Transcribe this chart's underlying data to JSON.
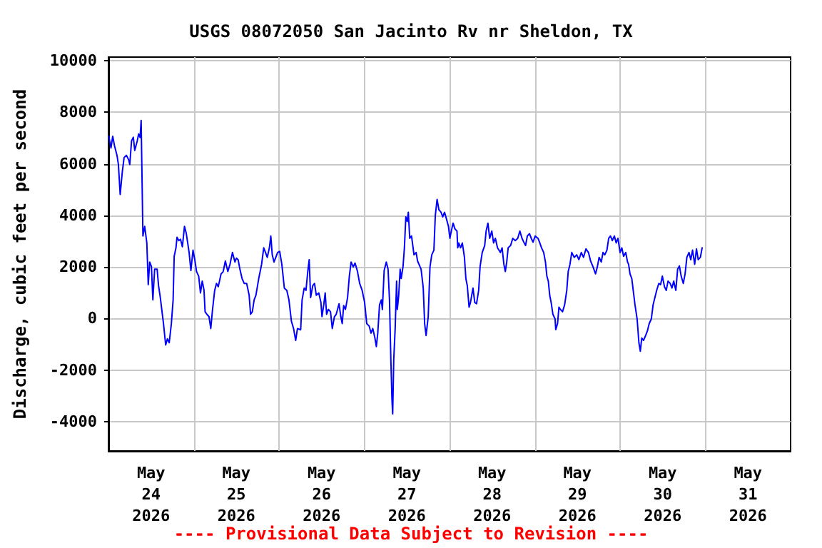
{
  "chart_data": {
    "type": "line",
    "title": "USGS 08072050 San Jacinto Rv nr Sheldon, TX",
    "ylabel": "Discharge, cubic feet per second",
    "annotations": [
      "---- Provisional Data Subject to Revision ----"
    ],
    "xlim": [
      "2026-05-24T00:00",
      "2026-06-01T00:00"
    ],
    "xticks": [
      {
        "value": "2026-05-24T12:00",
        "label": "May\n24\n2026"
      },
      {
        "value": "2026-05-25T00:00",
        "label": null
      },
      {
        "value": "2026-05-25T12:00",
        "label": "May\n25\n2026"
      },
      {
        "value": "2026-05-26T00:00",
        "label": null
      },
      {
        "value": "2026-05-26T12:00",
        "label": "May\n26\n2026"
      },
      {
        "value": "2026-05-27T00:00",
        "label": null
      },
      {
        "value": "2026-05-27T12:00",
        "label": "May\n27\n2026"
      },
      {
        "value": "2026-05-28T00:00",
        "label": null
      },
      {
        "value": "2026-05-28T12:00",
        "label": "May\n28\n2026"
      },
      {
        "value": "2026-05-29T00:00",
        "label": null
      },
      {
        "value": "2026-05-29T12:00",
        "label": "May\n29\n2026"
      },
      {
        "value": "2026-05-30T00:00",
        "label": null
      },
      {
        "value": "2026-05-30T12:00",
        "label": "May\n30\n2026"
      },
      {
        "value": "2026-05-31T00:00",
        "label": null
      },
      {
        "value": "2026-05-31T12:00",
        "label": "May\n31\n2026"
      }
    ],
    "ylim": [
      -5140,
      10140
    ],
    "yticks": [
      -4000,
      -2000,
      0,
      2000,
      4000,
      6000,
      8000,
      10000
    ],
    "grid": true,
    "marker": "none",
    "line_style": "solid",
    "series": [
      {
        "color": "#0000ff",
        "x": [
          "2026-05-24T00:06",
          "2026-05-24T00:42",
          "2026-05-24T01:12",
          "2026-05-24T01:42",
          "2026-05-24T02:24",
          "2026-05-24T02:48",
          "2026-05-24T03:18",
          "2026-05-24T03:54",
          "2026-05-24T04:24",
          "2026-05-24T05:03",
          "2026-05-24T05:42",
          "2026-05-24T06:00",
          "2026-05-24T06:30",
          "2026-05-24T07:00",
          "2026-05-24T07:24",
          "2026-05-24T08:06",
          "2026-05-24T08:30",
          "2026-05-24T08:54",
          "2026-05-24T09:12",
          "2026-05-24T09:24",
          "2026-05-24T09:42",
          "2026-05-24T10:12",
          "2026-05-24T10:48",
          "2026-05-24T11:12",
          "2026-05-24T11:36",
          "2026-05-24T12:06",
          "2026-05-24T12:30",
          "2026-05-24T13:00",
          "2026-05-24T13:42",
          "2026-05-24T14:06",
          "2026-05-24T14:36",
          "2026-05-24T15:00",
          "2026-05-24T15:30",
          "2026-05-24T16:06",
          "2026-05-24T16:36",
          "2026-05-24T17:06",
          "2026-05-24T17:42",
          "2026-05-24T18:12",
          "2026-05-24T18:30",
          "2026-05-24T19:00",
          "2026-05-24T19:18",
          "2026-05-24T19:48",
          "2026-05-24T20:18",
          "2026-05-24T20:48",
          "2026-05-24T21:24",
          "2026-05-24T21:54",
          "2026-05-24T22:18",
          "2026-05-24T22:42",
          "2026-05-24T23:12",
          "2026-05-24T23:48",
          "2026-05-25T00:18",
          "2026-05-25T00:48",
          "2026-05-25T01:24",
          "2026-05-25T01:54",
          "2026-05-25T02:24",
          "2026-05-25T02:54",
          "2026-05-25T03:12",
          "2026-05-25T03:42",
          "2026-05-25T04:18",
          "2026-05-25T04:48",
          "2026-05-25T05:18",
          "2026-05-25T05:54",
          "2026-05-25T06:24",
          "2026-05-25T06:54",
          "2026-05-25T07:42",
          "2026-05-25T08:18",
          "2026-05-25T08:54",
          "2026-05-25T09:36",
          "2026-05-25T10:12",
          "2026-05-25T10:54",
          "2026-05-25T11:36",
          "2026-05-25T12:00",
          "2026-05-25T12:30",
          "2026-05-25T13:00",
          "2026-05-25T13:36",
          "2026-05-25T14:12",
          "2026-05-25T14:54",
          "2026-05-25T15:36",
          "2026-05-25T16:00",
          "2026-05-25T16:30",
          "2026-05-25T17:00",
          "2026-05-25T17:30",
          "2026-05-25T18:18",
          "2026-05-25T19:06",
          "2026-05-25T19:42",
          "2026-05-25T20:12",
          "2026-05-25T20:42",
          "2026-05-25T21:18",
          "2026-05-25T21:42",
          "2026-05-25T22:06",
          "2026-05-25T22:36",
          "2026-05-25T23:06",
          "2026-05-25T23:36",
          "2026-05-26T00:12",
          "2026-05-26T00:48",
          "2026-05-26T01:30",
          "2026-05-26T02:12",
          "2026-05-26T02:48",
          "2026-05-26T03:30",
          "2026-05-26T04:06",
          "2026-05-26T04:42",
          "2026-05-26T05:12",
          "2026-05-26T06:06",
          "2026-05-26T06:30",
          "2026-05-26T07:06",
          "2026-05-26T07:36",
          "2026-05-26T08:06",
          "2026-05-26T08:30",
          "2026-05-26T08:54",
          "2026-05-26T09:30",
          "2026-05-26T10:00",
          "2026-05-26T10:30",
          "2026-05-26T11:12",
          "2026-05-26T11:48",
          "2026-05-26T12:06",
          "2026-05-26T12:36",
          "2026-05-26T13:00",
          "2026-05-26T13:24",
          "2026-05-26T13:54",
          "2026-05-26T14:30",
          "2026-05-26T15:00",
          "2026-05-26T15:36",
          "2026-05-26T16:06",
          "2026-05-26T16:54",
          "2026-05-26T17:24",
          "2026-05-26T17:48",
          "2026-05-26T18:12",
          "2026-05-26T18:42",
          "2026-05-26T19:18",
          "2026-05-26T19:48",
          "2026-05-26T20:18",
          "2026-05-26T20:54",
          "2026-05-26T21:24",
          "2026-05-26T22:06",
          "2026-05-26T22:42",
          "2026-05-26T23:24",
          "2026-05-27T00:06",
          "2026-05-27T00:42",
          "2026-05-27T01:24",
          "2026-05-27T01:54",
          "2026-05-27T02:24",
          "2026-05-27T03:00",
          "2026-05-27T03:24",
          "2026-05-27T03:48",
          "2026-05-27T04:18",
          "2026-05-27T04:48",
          "2026-05-27T05:06",
          "2026-05-27T05:36",
          "2026-05-27T06:12",
          "2026-05-27T06:42",
          "2026-05-27T07:06",
          "2026-05-27T07:30",
          "2026-05-27T07:48",
          "2026-05-27T08:00",
          "2026-05-27T08:18",
          "2026-05-27T08:42",
          "2026-05-27T09:06",
          "2026-05-27T09:18",
          "2026-05-27T09:42",
          "2026-05-27T10:06",
          "2026-05-27T10:24",
          "2026-05-27T10:54",
          "2026-05-27T11:18",
          "2026-05-27T11:42",
          "2026-05-27T12:06",
          "2026-05-27T12:24",
          "2026-05-27T12:48",
          "2026-05-27T13:18",
          "2026-05-27T14:00",
          "2026-05-27T14:36",
          "2026-05-27T15:00",
          "2026-05-27T15:24",
          "2026-05-27T16:00",
          "2026-05-27T16:36",
          "2026-05-27T17:00",
          "2026-05-27T17:24",
          "2026-05-27T18:00",
          "2026-05-27T18:30",
          "2026-05-27T19:00",
          "2026-05-27T19:36",
          "2026-05-27T20:00",
          "2026-05-27T20:30",
          "2026-05-27T21:00",
          "2026-05-27T21:36",
          "2026-05-27T22:06",
          "2026-05-27T22:36",
          "2026-05-27T23:06",
          "2026-05-27T23:42",
          "2026-05-28T00:06",
          "2026-05-28T00:30",
          "2026-05-28T01:00",
          "2026-05-28T01:30",
          "2026-05-28T02:06",
          "2026-05-28T02:18",
          "2026-05-28T02:36",
          "2026-05-28T03:06",
          "2026-05-28T03:36",
          "2026-05-28T04:12",
          "2026-05-28T04:36",
          "2026-05-28T05:00",
          "2026-05-28T05:30",
          "2026-05-28T05:54",
          "2026-05-28T06:36",
          "2026-05-28T07:06",
          "2026-05-28T07:36",
          "2026-05-28T08:12",
          "2026-05-28T08:36",
          "2026-05-28T09:12",
          "2026-05-28T09:54",
          "2026-05-28T10:18",
          "2026-05-28T10:48",
          "2026-05-28T11:18",
          "2026-05-28T11:54",
          "2026-05-28T12:24",
          "2026-05-28T12:54",
          "2026-05-28T13:30",
          "2026-05-28T14:18",
          "2026-05-28T14:48",
          "2026-05-28T15:18",
          "2026-05-28T15:42",
          "2026-05-28T16:06",
          "2026-05-28T16:30",
          "2026-05-28T17:12",
          "2026-05-28T17:48",
          "2026-05-28T18:30",
          "2026-05-28T19:12",
          "2026-05-28T19:48",
          "2026-05-28T20:24",
          "2026-05-28T20:54",
          "2026-05-28T21:24",
          "2026-05-28T21:54",
          "2026-05-28T22:30",
          "2026-05-28T23:00",
          "2026-05-28T23:30",
          "2026-05-29T00:06",
          "2026-05-29T00:54",
          "2026-05-29T01:24",
          "2026-05-29T01:54",
          "2026-05-29T02:30",
          "2026-05-29T03:00",
          "2026-05-29T03:24",
          "2026-05-29T03:48",
          "2026-05-29T04:12",
          "2026-05-29T04:36",
          "2026-05-29T05:06",
          "2026-05-29T05:42",
          "2026-05-29T05:54",
          "2026-05-29T06:24",
          "2026-05-29T06:48",
          "2026-05-29T07:12",
          "2026-05-29T07:48",
          "2026-05-29T08:24",
          "2026-05-29T09:00",
          "2026-05-29T09:24",
          "2026-05-29T09:54",
          "2026-05-29T10:24",
          "2026-05-29T11:06",
          "2026-05-29T11:48",
          "2026-05-29T12:24",
          "2026-05-29T13:06",
          "2026-05-29T13:42",
          "2026-05-29T14:24",
          "2026-05-29T15:06",
          "2026-05-29T15:42",
          "2026-05-29T16:24",
          "2026-05-29T17:06",
          "2026-05-29T17:36",
          "2026-05-29T18:06",
          "2026-05-29T18:42",
          "2026-05-29T19:12",
          "2026-05-29T19:42",
          "2026-05-29T20:18",
          "2026-05-29T20:48",
          "2026-05-29T21:18",
          "2026-05-29T21:48",
          "2026-05-29T22:24",
          "2026-05-29T22:54",
          "2026-05-29T23:24",
          "2026-05-30T00:00",
          "2026-05-30T00:30",
          "2026-05-30T01:00",
          "2026-05-30T01:36",
          "2026-05-30T02:06",
          "2026-05-30T02:24",
          "2026-05-30T02:48",
          "2026-05-30T03:18",
          "2026-05-30T03:42",
          "2026-05-30T04:12",
          "2026-05-30T04:48",
          "2026-05-30T05:18",
          "2026-05-30T05:42",
          "2026-05-30T06:06",
          "2026-05-30T06:36",
          "2026-05-30T07:12",
          "2026-05-30T07:42",
          "2026-05-30T08:12",
          "2026-05-30T08:48",
          "2026-05-30T09:18",
          "2026-05-30T09:48",
          "2026-05-30T10:18",
          "2026-05-30T10:54",
          "2026-05-30T11:24",
          "2026-05-30T11:54",
          "2026-05-30T12:30",
          "2026-05-30T13:00",
          "2026-05-30T13:30",
          "2026-05-30T14:06",
          "2026-05-30T14:36",
          "2026-05-30T15:06",
          "2026-05-30T15:42",
          "2026-05-30T16:12",
          "2026-05-30T16:42",
          "2026-05-30T17:12",
          "2026-05-30T17:48",
          "2026-05-30T18:18",
          "2026-05-30T18:48",
          "2026-05-30T19:24",
          "2026-05-30T19:54",
          "2026-05-30T20:24",
          "2026-05-30T21:00",
          "2026-05-30T21:30",
          "2026-05-30T22:00",
          "2026-05-30T22:36",
          "2026-05-30T23:06"
        ],
        "values": [
          7070,
          6610,
          7070,
          6700,
          6330,
          5970,
          4810,
          5690,
          6240,
          6330,
          6150,
          5970,
          6890,
          7030,
          6520,
          6890,
          7160,
          7020,
          7680,
          5910,
          3200,
          3570,
          2930,
          1310,
          2190,
          2010,
          720,
          1910,
          1910,
          1270,
          810,
          350,
          -210,
          -1030,
          -790,
          -940,
          -210,
          720,
          2410,
          2740,
          3150,
          3020,
          3070,
          2780,
          3570,
          3300,
          2930,
          2560,
          1860,
          2650,
          2280,
          1820,
          1640,
          990,
          1450,
          1090,
          260,
          160,
          70,
          -390,
          350,
          1090,
          1360,
          1230,
          1730,
          1820,
          2230,
          1820,
          2100,
          2560,
          2190,
          2340,
          2280,
          1910,
          1550,
          1360,
          1360,
          900,
          160,
          260,
          720,
          900,
          1550,
          2100,
          2740,
          2560,
          2370,
          2740,
          3200,
          2470,
          2190,
          2370,
          2560,
          2600,
          2100,
          1180,
          1090,
          720,
          -110,
          -390,
          -850,
          -390,
          -440,
          720,
          1180,
          1090,
          1820,
          2280,
          810,
          1270,
          1360,
          900,
          990,
          620,
          70,
          530,
          990,
          160,
          350,
          260,
          -390,
          70,
          160,
          570,
          70,
          -200,
          500,
          350,
          810,
          1640,
          2190,
          2000,
          2150,
          1820,
          1360,
          1090,
          620,
          -200,
          -300,
          -570,
          -390,
          -760,
          -1090,
          -570,
          530,
          720,
          350,
          1860,
          2190,
          1910,
          720,
          -1680,
          -3150,
          -3700,
          -1590,
          -390,
          1450,
          350,
          900,
          1910,
          1550,
          2000,
          2740,
          3940,
          3760,
          4120,
          3110,
          3200,
          2470,
          2560,
          2230,
          2100,
          1910,
          1180,
          -200,
          -660,
          70,
          2000,
          2470,
          2650,
          4000,
          4620,
          4220,
          4120,
          3940,
          4120,
          3880,
          3570,
          3110,
          3390,
          3700,
          3480,
          3390,
          2740,
          2930,
          2740,
          2930,
          2370,
          1550,
          1270,
          440,
          620,
          1180,
          620,
          570,
          1090,
          2010,
          2560,
          2830,
          3390,
          3700,
          3110,
          3390,
          2930,
          3110,
          2740,
          2560,
          2740,
          2100,
          1820,
          2190,
          2740,
          2830,
          3110,
          3020,
          3110,
          3390,
          3110,
          2960,
          2830,
          3200,
          3290,
          3110,
          2960,
          3200,
          3110,
          2930,
          2740,
          2560,
          2190,
          1640,
          1450,
          900,
          620,
          160,
          -20,
          -430,
          -200,
          440,
          350,
          260,
          530,
          1090,
          1820,
          2100,
          2560,
          2370,
          2470,
          2280,
          2560,
          2370,
          2700,
          2560,
          2230,
          2000,
          1730,
          2000,
          2370,
          2190,
          2560,
          2470,
          2650,
          3110,
          3200,
          3020,
          3200,
          2930,
          3110,
          2560,
          2740,
          2410,
          2560,
          2190,
          2100,
          1730,
          1550,
          1090,
          530,
          -20,
          -940,
          -1270,
          -760,
          -850,
          -660,
          -480,
          -200,
          -20,
          530,
          810,
          1090,
          1360,
          1310,
          1640,
          1230,
          1090,
          1450,
          1360,
          1180,
          1450,
          1090,
          1910,
          2040,
          1640,
          1360,
          1730,
          2370,
          2560,
          2280,
          2650,
          2100,
          2700,
          2280,
          2370,
          2740
        ]
      }
    ]
  }
}
